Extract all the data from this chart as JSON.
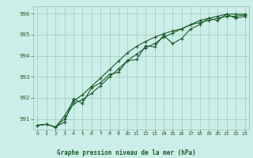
{
  "xlabel": "Graphe pression niveau de la mer (hPa)",
  "background_color": "#cceee8",
  "grid_color": "#99ccbb",
  "line_color": "#1a5c2a",
  "ylim": [
    990.5,
    996.35
  ],
  "xlim": [
    -0.5,
    23.5
  ],
  "yticks": [
    991,
    992,
    993,
    994,
    995,
    996
  ],
  "xticks": [
    0,
    1,
    2,
    3,
    4,
    5,
    6,
    7,
    8,
    9,
    10,
    11,
    12,
    13,
    14,
    15,
    16,
    17,
    18,
    19,
    20,
    21,
    22,
    23
  ],
  "line1_x": [
    0,
    1,
    2,
    3,
    4,
    5,
    6,
    7,
    8,
    9,
    10,
    11,
    12,
    13,
    14,
    15,
    16,
    17,
    18,
    19,
    20,
    21,
    22,
    23
  ],
  "line1_y": [
    990.7,
    990.75,
    990.62,
    990.85,
    991.95,
    991.75,
    992.48,
    992.72,
    993.12,
    993.22,
    993.78,
    993.82,
    994.48,
    994.42,
    994.98,
    994.58,
    994.82,
    995.28,
    995.48,
    995.78,
    995.68,
    995.98,
    995.78,
    995.88
  ],
  "line2_x": [
    0,
    1,
    2,
    3,
    4,
    5,
    6,
    7,
    8,
    9,
    10,
    11,
    12,
    13,
    14,
    15,
    16,
    17,
    18,
    19,
    20,
    21,
    22,
    23
  ],
  "line2_y": [
    990.7,
    990.75,
    990.62,
    991.15,
    991.85,
    992.15,
    992.55,
    992.95,
    993.35,
    993.75,
    994.15,
    994.45,
    994.68,
    994.88,
    995.05,
    995.18,
    995.28,
    995.48,
    995.58,
    995.68,
    995.78,
    995.88,
    995.88,
    995.95
  ],
  "line3_x": [
    0,
    1,
    2,
    3,
    4,
    5,
    6,
    7,
    8,
    9,
    10,
    11,
    12,
    13,
    14,
    15,
    16,
    17,
    18,
    19,
    20,
    21,
    22,
    23
  ],
  "line3_y": [
    990.7,
    990.75,
    990.62,
    991.0,
    991.72,
    991.92,
    992.22,
    992.58,
    993.0,
    993.38,
    993.78,
    994.08,
    994.38,
    994.58,
    994.88,
    995.08,
    995.28,
    995.48,
    995.68,
    995.78,
    995.88,
    995.98,
    995.98,
    995.98
  ]
}
